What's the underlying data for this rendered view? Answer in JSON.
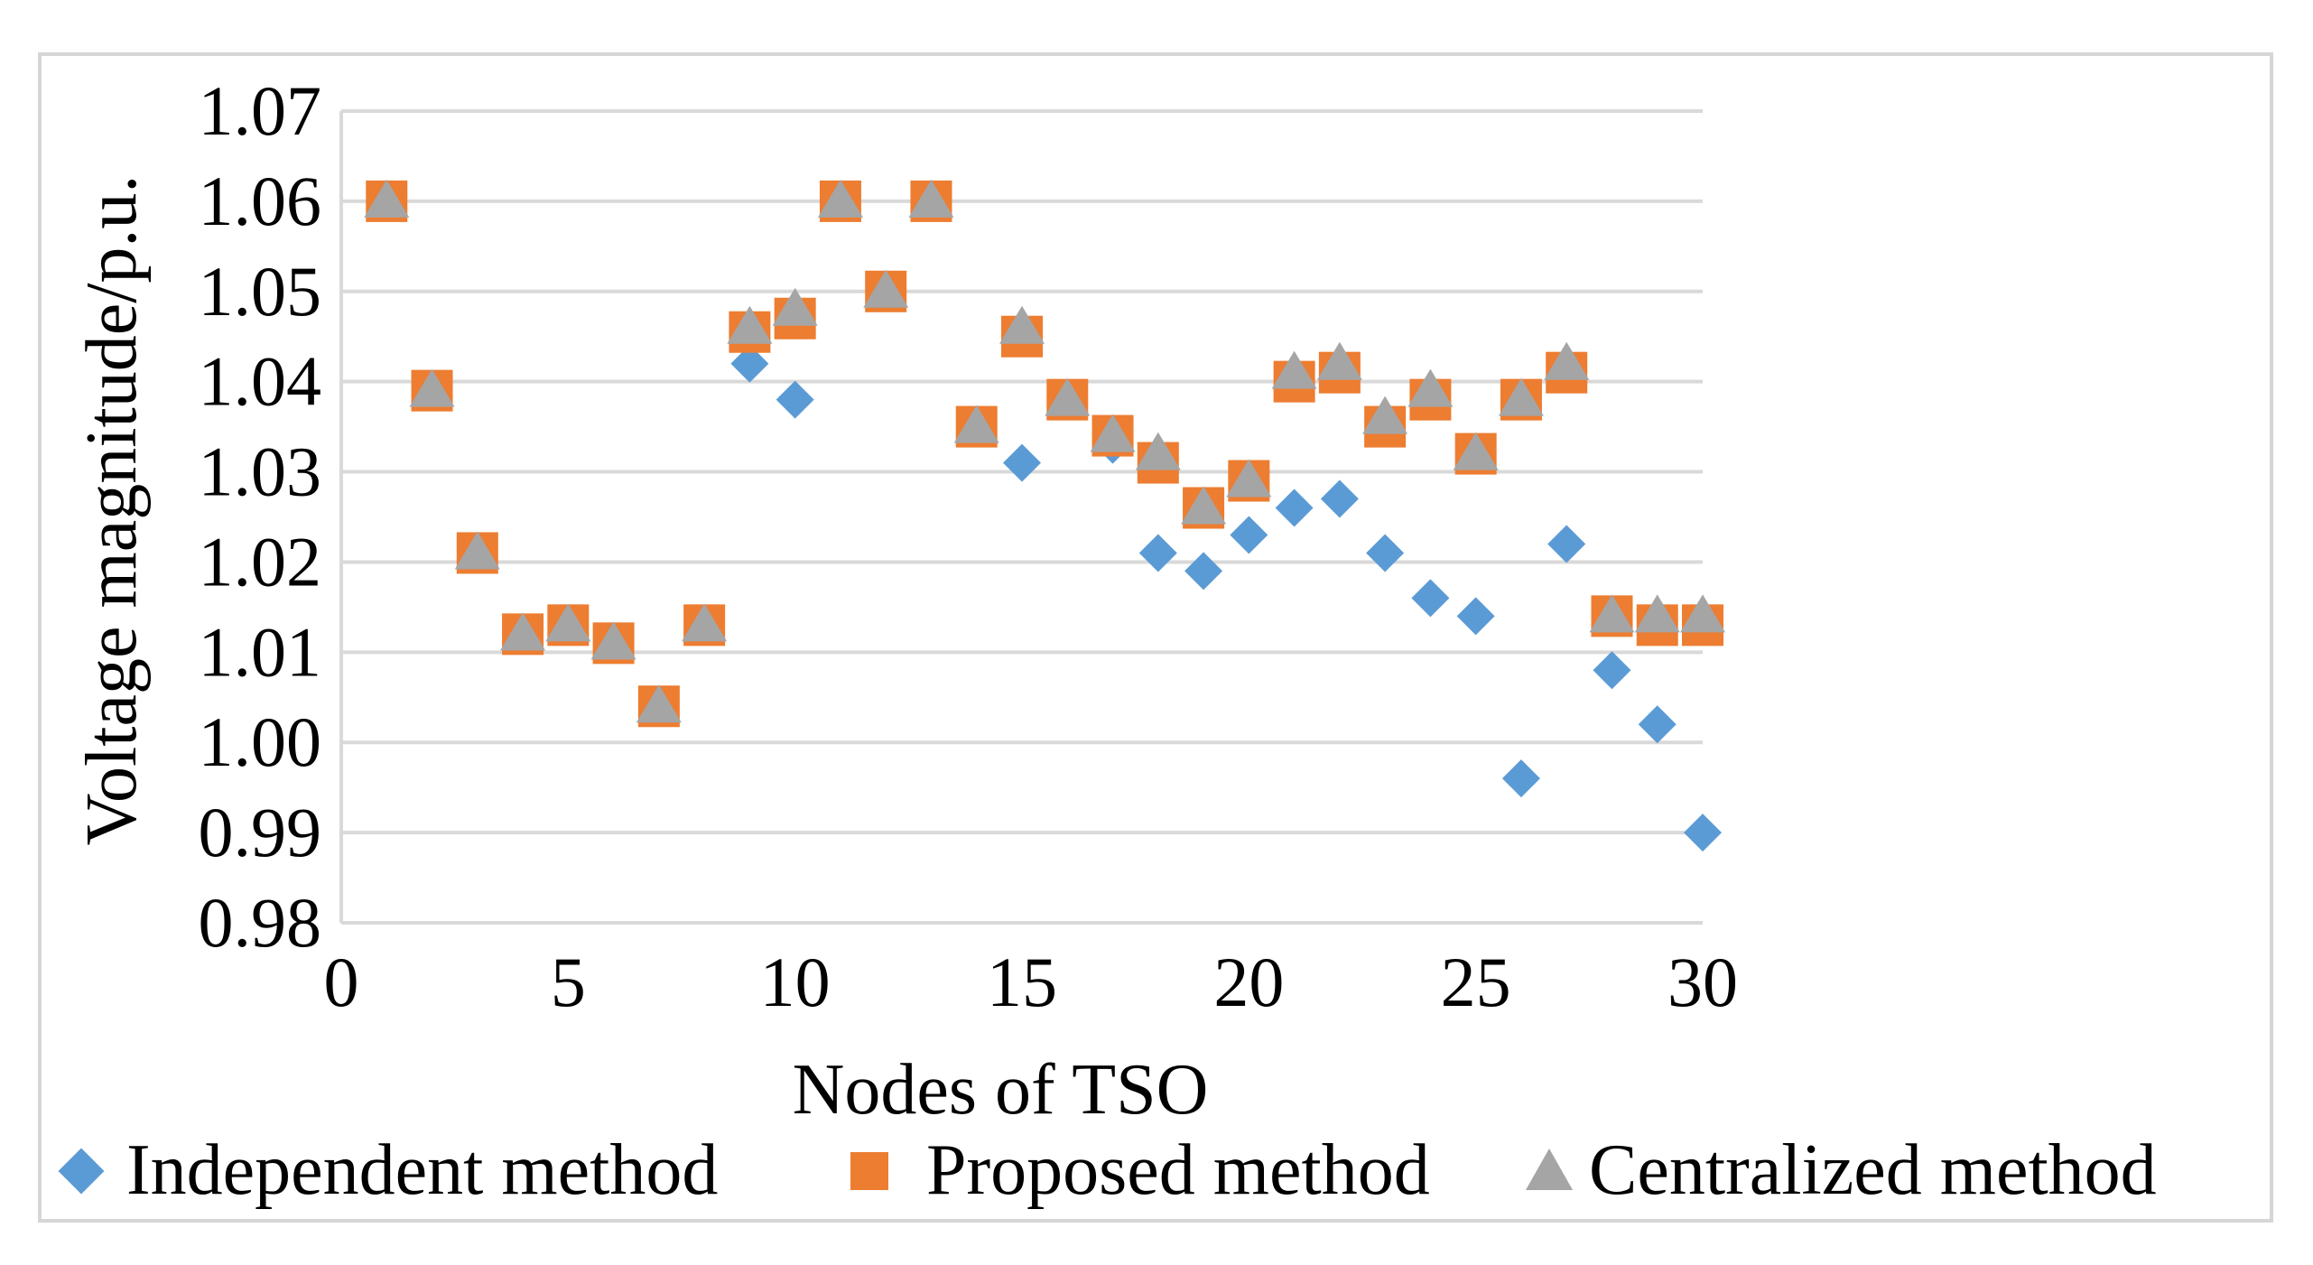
{
  "chart_data": {
    "type": "scatter",
    "title": "",
    "xlabel": "Nodes of TSO",
    "ylabel": "Voltage magnitude/p.u.",
    "xlim": [
      0,
      30
    ],
    "ylim": [
      0.98,
      1.07
    ],
    "x_ticks": [
      "0",
      "5",
      "10",
      "15",
      "20",
      "25",
      "30"
    ],
    "x_tick_values": [
      0,
      5,
      10,
      15,
      20,
      25,
      30
    ],
    "y_ticks": [
      "0.98",
      "0.99",
      "1.00",
      "1.01",
      "1.02",
      "1.03",
      "1.04",
      "1.05",
      "1.06",
      "1.07"
    ],
    "y_tick_values": [
      0.98,
      0.99,
      1.0,
      1.01,
      1.02,
      1.03,
      1.04,
      1.05,
      1.06,
      1.07
    ],
    "grid": "horizontal",
    "legend_position": "bottom",
    "x": [
      1,
      2,
      3,
      4,
      5,
      6,
      7,
      8,
      9,
      10,
      11,
      12,
      13,
      14,
      15,
      16,
      17,
      18,
      19,
      20,
      21,
      22,
      23,
      24,
      25,
      26,
      27,
      28,
      29,
      30
    ],
    "series": [
      {
        "name": "Independent method",
        "marker": "diamond",
        "color": "#5B9BD5",
        "values": [
          1.06,
          1.039,
          1.021,
          1.012,
          1.013,
          1.011,
          1.004,
          1.013,
          1.042,
          1.038,
          1.06,
          1.05,
          1.06,
          1.035,
          1.031,
          1.038,
          1.033,
          1.021,
          1.019,
          1.023,
          1.026,
          1.027,
          1.021,
          1.016,
          1.014,
          0.996,
          1.022,
          1.008,
          1.002,
          0.99
        ]
      },
      {
        "name": "Proposed method",
        "marker": "square",
        "color": "#ED7D31",
        "values": [
          1.06,
          1.039,
          1.021,
          1.012,
          1.013,
          1.011,
          1.004,
          1.013,
          1.0455,
          1.047,
          1.06,
          1.05,
          1.06,
          1.035,
          1.045,
          1.038,
          1.034,
          1.031,
          1.026,
          1.029,
          1.04,
          1.041,
          1.035,
          1.038,
          1.032,
          1.038,
          1.041,
          1.014,
          1.013,
          1.013
        ]
      },
      {
        "name": "Centralized method",
        "marker": "triangle",
        "color": "#A5A5A5",
        "values": [
          1.06,
          1.039,
          1.021,
          1.012,
          1.013,
          1.011,
          1.004,
          1.013,
          1.046,
          1.048,
          1.06,
          1.05,
          1.06,
          1.035,
          1.046,
          1.038,
          1.034,
          1.032,
          1.026,
          1.029,
          1.041,
          1.042,
          1.036,
          1.039,
          1.032,
          1.038,
          1.042,
          1.014,
          1.014,
          1.014
        ]
      }
    ]
  }
}
